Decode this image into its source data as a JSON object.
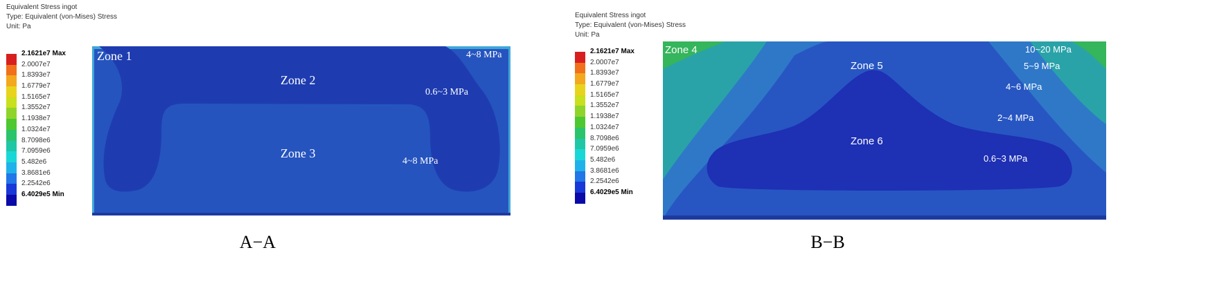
{
  "legend": {
    "title": "Equivalent Stress ingot",
    "type": "Type: Equivalent (von-Mises) Stress",
    "unit": "Unit: Pa",
    "entries": [
      {
        "label": "2.1621e7 Max",
        "color": "#d81f1f"
      },
      {
        "label": "2.0007e7",
        "color": "#f0701c"
      },
      {
        "label": "1.8393e7",
        "color": "#f3a81f"
      },
      {
        "label": "1.6779e7",
        "color": "#e8d41d"
      },
      {
        "label": "1.5165e7",
        "color": "#c8e01d"
      },
      {
        "label": "1.3552e7",
        "color": "#8fd42a"
      },
      {
        "label": "1.1938e7",
        "color": "#4dc831"
      },
      {
        "label": "1.0324e7",
        "color": "#2bc46c"
      },
      {
        "label": "8.7098e6",
        "color": "#1fc7a6"
      },
      {
        "label": "7.0959e6",
        "color": "#1ad7d7"
      },
      {
        "label": "5.482e6",
        "color": "#1fb2ea"
      },
      {
        "label": "3.8681e6",
        "color": "#2176e8"
      },
      {
        "label": "2.2542e6",
        "color": "#1838d8"
      },
      {
        "label": "6.4029e5 Min",
        "color": "#0a0aa8"
      }
    ]
  },
  "panel_a": {
    "caption": "A−A",
    "zones": {
      "zone1": "Zone 1",
      "zone2": "Zone 2",
      "zone3": "Zone 3"
    },
    "values": {
      "top_right": "4~8 MPa",
      "mid_right": "0.6~3 MPa",
      "bottom_right": "4~8 MPa"
    },
    "colors": {
      "background": "#2554bf",
      "core": "#1e3cb0",
      "edge": "#3fa6d8"
    }
  },
  "panel_b": {
    "caption": "B−B",
    "zones": {
      "zone4": "Zone 4",
      "zone5": "Zone 5",
      "zone6": "Zone 6"
    },
    "values": {
      "v1": "10~20 MPa",
      "v2": "5~9 MPa",
      "v3": "4~6 MPa",
      "v4": "2~4 MPa",
      "v5": "0.6~3 MPa"
    },
    "colors": {
      "green_corner": "#35b55c",
      "teal": "#2aa3a8",
      "blue_mid": "#2f78c8",
      "blue_deep": "#2756c2",
      "core": "#1e30b4"
    }
  }
}
